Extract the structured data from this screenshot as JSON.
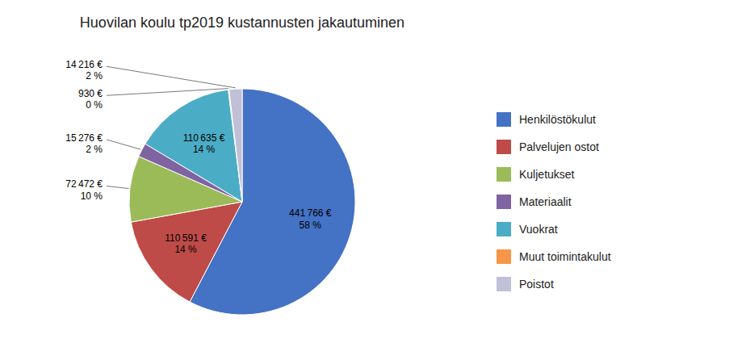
{
  "chart_data": {
    "type": "pie",
    "title": "Huovilan koulu tp2019 kustannusten jakautuminen",
    "labels": [
      "Henkilöstökulut",
      "Palvelujen ostot",
      "Kuljetukset",
      "Materiaalit",
      "Vuokrat",
      "Muut toimintakulut",
      "Poistot"
    ],
    "values": [
      441766,
      110591,
      72472,
      15276,
      110635,
      930,
      14216
    ],
    "value_labels": [
      "441 766 €",
      "110 591 €",
      "72 472 €",
      "15 276 €",
      "110 635 €",
      "930 €",
      "14 216 €"
    ],
    "shares": [
      58,
      14,
      10,
      2,
      14,
      0,
      2
    ],
    "share_labels": [
      "58 %",
      "14 %",
      "10 %",
      "2 %",
      "14 %",
      "0 %",
      "2 %"
    ],
    "colors": [
      "#4472C4",
      "#BE4B48",
      "#9BBB59",
      "#8064A2",
      "#4BACC6",
      "#F79646",
      "#C0C0D8"
    ],
    "data_labels": true,
    "legend": "right"
  }
}
